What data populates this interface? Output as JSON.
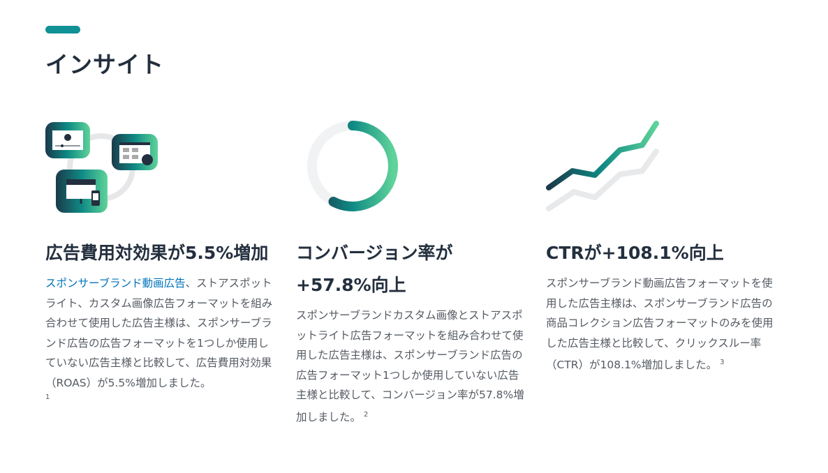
{
  "header": {
    "title": "インサイト",
    "accent_color": "#0f9196"
  },
  "insights": [
    {
      "icon": "ad-formats-icon",
      "title": "広告費用対効果が5.5%増加",
      "link_text": "スポンサーブランド動画広告",
      "body": "、ストアスポットライト、カスタム画像広告フォーマットを組み合わせて使用した広告主様は、スポンサーブランド広告の広告フォーマットを1つしか使用していない広告主様と比較して、広告費用対効果（ROAS）が5.5%増加しました。",
      "footnote": "1"
    },
    {
      "icon": "donut-icon",
      "progress_percent": 57.8,
      "title": "コンバージョン率が+57.8%向上",
      "body": "スポンサーブランドカスタム画像とストアスポットライト広告フォーマットを組み合わせて使用した広告主様は、スポンサーブランド広告の広告フォーマット1つしか使用していない広告主様と比較して、コンバージョン率が57.8%増加しました。",
      "footnote": "2"
    },
    {
      "icon": "trend-line-icon",
      "title": "CTRが+108.1%向上",
      "body": "スポンサーブランド動画広告フォーマットを使用した広告主様は、スポンサーブランド広告の商品コレクション広告フォーマットのみを使用した広告主様と比較して、クリックスルー率（CTR）が108.1%増加しました。",
      "footnote": "3"
    }
  ]
}
